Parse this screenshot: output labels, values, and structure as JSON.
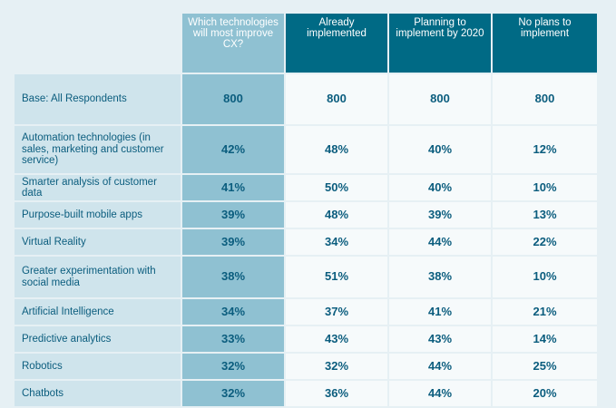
{
  "table": {
    "headers": [
      "",
      "Which technologies will most improve CX?",
      "Already implemented",
      "Planning to implement by 2020",
      "No plans to implement"
    ],
    "rows": [
      {
        "label": "Base: All Respondents",
        "values": [
          "800",
          "800",
          "800",
          "800"
        ]
      },
      {
        "label": "Automation technologies (in sales, marketing and customer service)",
        "values": [
          "42%",
          "48%",
          "40%",
          "12%"
        ]
      },
      {
        "label": "Smarter analysis of customer data",
        "values": [
          "41%",
          "50%",
          "40%",
          "10%"
        ]
      },
      {
        "label": "Purpose-built mobile apps",
        "values": [
          "39%",
          "48%",
          "39%",
          "13%"
        ]
      },
      {
        "label": "Virtual Reality",
        "values": [
          "39%",
          "34%",
          "44%",
          "22%"
        ]
      },
      {
        "label": "Greater experimentation with social media",
        "values": [
          "38%",
          "51%",
          "38%",
          "10%"
        ]
      },
      {
        "label": "Artificial Intelligence",
        "values": [
          "34%",
          "37%",
          "41%",
          "21%"
        ]
      },
      {
        "label": "Predictive analytics",
        "values": [
          "33%",
          "43%",
          "43%",
          "14%"
        ]
      },
      {
        "label": "Robotics",
        "values": [
          "32%",
          "32%",
          "44%",
          "25%"
        ]
      },
      {
        "label": "Chatbots",
        "values": [
          "32%",
          "36%",
          "44%",
          "20%"
        ]
      }
    ]
  },
  "colors": {
    "page_bg": "#e6f0f4",
    "header_dark": "#006a85",
    "header_light": "#8fc1d2",
    "label_bg": "#cfe4ec",
    "cell_bg": "#f6fafb",
    "text": "#0b5d7e"
  }
}
